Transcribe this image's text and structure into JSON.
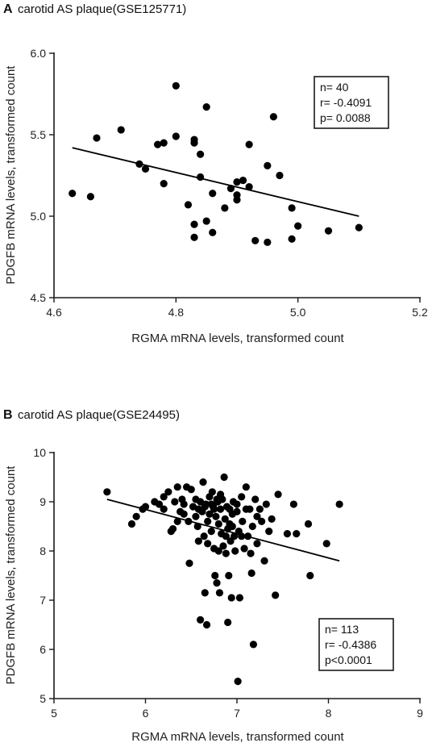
{
  "chart_data": [
    {
      "type": "scatter",
      "panel_letter": "A",
      "title": "carotid AS plaque(GSE125771)",
      "xlabel": "RGMA mRNA levels, transformed count",
      "ylabel": "PDGFB mRNA levels, transformed count",
      "xlim": [
        4.6,
        5.2
      ],
      "ylim": [
        4.5,
        6.0
      ],
      "xticks": [
        "4.6",
        "4.8",
        "5.0",
        "5.2"
      ],
      "yticks": [
        "4.5",
        "5.0",
        "5.5",
        "6.0"
      ],
      "xtick_values": [
        4.6,
        4.8,
        5.0,
        5.2
      ],
      "ytick_values": [
        4.5,
        5.0,
        5.5,
        6.0
      ],
      "grid": false,
      "stats": {
        "n": "n= 40",
        "r": "r= -0.4091",
        "p": "p= 0.0088"
      },
      "trendline": {
        "x": [
          4.63,
          5.1
        ],
        "y": [
          5.42,
          5.0
        ]
      },
      "points": [
        {
          "x": 4.63,
          "y": 5.14
        },
        {
          "x": 4.66,
          "y": 5.12
        },
        {
          "x": 4.67,
          "y": 5.48
        },
        {
          "x": 4.71,
          "y": 5.53
        },
        {
          "x": 4.74,
          "y": 5.32
        },
        {
          "x": 4.75,
          "y": 5.29
        },
        {
          "x": 4.77,
          "y": 5.44
        },
        {
          "x": 4.78,
          "y": 5.45
        },
        {
          "x": 4.78,
          "y": 5.2
        },
        {
          "x": 4.8,
          "y": 5.8
        },
        {
          "x": 4.8,
          "y": 5.49
        },
        {
          "x": 4.82,
          "y": 5.07
        },
        {
          "x": 4.83,
          "y": 5.47
        },
        {
          "x": 4.83,
          "y": 5.45
        },
        {
          "x": 4.83,
          "y": 4.95
        },
        {
          "x": 4.83,
          "y": 4.87
        },
        {
          "x": 4.84,
          "y": 5.38
        },
        {
          "x": 4.84,
          "y": 5.24
        },
        {
          "x": 4.85,
          "y": 5.67
        },
        {
          "x": 4.85,
          "y": 4.97
        },
        {
          "x": 4.86,
          "y": 5.14
        },
        {
          "x": 4.86,
          "y": 4.9
        },
        {
          "x": 4.89,
          "y": 5.17
        },
        {
          "x": 4.9,
          "y": 5.21
        },
        {
          "x": 4.9,
          "y": 5.13
        },
        {
          "x": 4.9,
          "y": 5.1
        },
        {
          "x": 4.91,
          "y": 5.22
        },
        {
          "x": 4.92,
          "y": 5.44
        },
        {
          "x": 4.92,
          "y": 5.18
        },
        {
          "x": 4.95,
          "y": 5.31
        },
        {
          "x": 4.95,
          "y": 4.84
        },
        {
          "x": 4.96,
          "y": 5.61
        },
        {
          "x": 4.97,
          "y": 5.25
        },
        {
          "x": 4.99,
          "y": 5.05
        },
        {
          "x": 4.99,
          "y": 4.86
        },
        {
          "x": 5.0,
          "y": 4.94
        },
        {
          "x": 5.05,
          "y": 4.91
        },
        {
          "x": 5.1,
          "y": 4.93
        },
        {
          "x": 4.93,
          "y": 4.85
        },
        {
          "x": 4.88,
          "y": 5.05
        }
      ]
    },
    {
      "type": "scatter",
      "panel_letter": "B",
      "title": "carotid AS plaque(GSE24495)",
      "xlabel": "RGMA mRNA levels, transformed count",
      "ylabel": "PDGFB mRNA levels, transformed count",
      "xlim": [
        5,
        9
      ],
      "ylim": [
        5,
        10
      ],
      "xticks": [
        "5",
        "6",
        "7",
        "8",
        "9"
      ],
      "yticks": [
        "5",
        "6",
        "7",
        "8",
        "9",
        "10"
      ],
      "xtick_values": [
        5,
        6,
        7,
        8,
        9
      ],
      "ytick_values": [
        5,
        6,
        7,
        8,
        9,
        10
      ],
      "grid": false,
      "stats": {
        "n": "n= 113",
        "r": "r= -0.4386",
        "p": "p<0.0001"
      },
      "trendline": {
        "x": [
          5.58,
          8.12
        ],
        "y": [
          9.05,
          7.8
        ]
      },
      "points": [
        {
          "x": 5.58,
          "y": 9.2
        },
        {
          "x": 5.85,
          "y": 8.55
        },
        {
          "x": 5.9,
          "y": 8.7
        },
        {
          "x": 5.97,
          "y": 8.85
        },
        {
          "x": 6.0,
          "y": 8.9
        },
        {
          "x": 6.1,
          "y": 9.0
        },
        {
          "x": 6.15,
          "y": 8.95
        },
        {
          "x": 6.2,
          "y": 9.1
        },
        {
          "x": 6.25,
          "y": 9.2
        },
        {
          "x": 6.28,
          "y": 8.4
        },
        {
          "x": 6.3,
          "y": 8.45
        },
        {
          "x": 6.32,
          "y": 9.0
        },
        {
          "x": 6.35,
          "y": 9.3
        },
        {
          "x": 6.38,
          "y": 8.8
        },
        {
          "x": 6.4,
          "y": 9.05
        },
        {
          "x": 6.42,
          "y": 8.95
        },
        {
          "x": 6.45,
          "y": 9.3
        },
        {
          "x": 6.47,
          "y": 8.6
        },
        {
          "x": 6.48,
          "y": 7.75
        },
        {
          "x": 6.5,
          "y": 9.25
        },
        {
          "x": 6.52,
          "y": 8.9
        },
        {
          "x": 6.55,
          "y": 8.7
        },
        {
          "x": 6.57,
          "y": 8.5
        },
        {
          "x": 6.58,
          "y": 8.2
        },
        {
          "x": 6.6,
          "y": 9.0
        },
        {
          "x": 6.6,
          "y": 6.6
        },
        {
          "x": 6.62,
          "y": 8.8
        },
        {
          "x": 6.63,
          "y": 9.4
        },
        {
          "x": 6.64,
          "y": 8.3
        },
        {
          "x": 6.65,
          "y": 7.15
        },
        {
          "x": 6.66,
          "y": 8.95
        },
        {
          "x": 6.67,
          "y": 6.5
        },
        {
          "x": 6.68,
          "y": 8.6
        },
        {
          "x": 6.7,
          "y": 9.1
        },
        {
          "x": 6.7,
          "y": 8.75
        },
        {
          "x": 6.72,
          "y": 8.4
        },
        {
          "x": 6.73,
          "y": 9.2
        },
        {
          "x": 6.74,
          "y": 8.9
        },
        {
          "x": 6.75,
          "y": 8.05
        },
        {
          "x": 6.76,
          "y": 7.5
        },
        {
          "x": 6.77,
          "y": 8.7
        },
        {
          "x": 6.78,
          "y": 7.35
        },
        {
          "x": 6.79,
          "y": 9.0
        },
        {
          "x": 6.8,
          "y": 8.55
        },
        {
          "x": 6.8,
          "y": 8.0
        },
        {
          "x": 6.81,
          "y": 7.15
        },
        {
          "x": 6.82,
          "y": 8.85
        },
        {
          "x": 6.83,
          "y": 8.35
        },
        {
          "x": 6.84,
          "y": 9.05
        },
        {
          "x": 6.85,
          "y": 8.1
        },
        {
          "x": 6.86,
          "y": 9.5
        },
        {
          "x": 6.87,
          "y": 8.65
        },
        {
          "x": 6.88,
          "y": 7.95
        },
        {
          "x": 6.89,
          "y": 8.9
        },
        {
          "x": 6.9,
          "y": 8.45
        },
        {
          "x": 6.9,
          "y": 6.55
        },
        {
          "x": 6.91,
          "y": 7.5
        },
        {
          "x": 6.92,
          "y": 8.85
        },
        {
          "x": 6.93,
          "y": 8.2
        },
        {
          "x": 6.94,
          "y": 7.05
        },
        {
          "x": 6.95,
          "y": 8.5
        },
        {
          "x": 6.96,
          "y": 9.0
        },
        {
          "x": 6.97,
          "y": 8.3
        },
        {
          "x": 6.98,
          "y": 8.0
        },
        {
          "x": 7.0,
          "y": 8.8
        },
        {
          "x": 7.01,
          "y": 5.35
        },
        {
          "x": 7.02,
          "y": 8.4
        },
        {
          "x": 7.03,
          "y": 7.05
        },
        {
          "x": 7.05,
          "y": 9.1
        },
        {
          "x": 7.06,
          "y": 8.6
        },
        {
          "x": 7.08,
          "y": 8.05
        },
        {
          "x": 7.1,
          "y": 9.3
        },
        {
          "x": 7.12,
          "y": 8.3
        },
        {
          "x": 7.14,
          "y": 8.85
        },
        {
          "x": 7.15,
          "y": 7.95
        },
        {
          "x": 7.16,
          "y": 7.55
        },
        {
          "x": 7.17,
          "y": 8.5
        },
        {
          "x": 7.18,
          "y": 6.1
        },
        {
          "x": 7.2,
          "y": 9.05
        },
        {
          "x": 7.22,
          "y": 8.15
        },
        {
          "x": 7.25,
          "y": 8.85
        },
        {
          "x": 7.27,
          "y": 8.6
        },
        {
          "x": 7.3,
          "y": 7.8
        },
        {
          "x": 7.32,
          "y": 8.95
        },
        {
          "x": 7.35,
          "y": 8.4
        },
        {
          "x": 7.38,
          "y": 8.65
        },
        {
          "x": 7.42,
          "y": 7.1
        },
        {
          "x": 7.45,
          "y": 9.15
        },
        {
          "x": 7.55,
          "y": 8.35
        },
        {
          "x": 7.62,
          "y": 8.95
        },
        {
          "x": 7.65,
          "y": 8.35
        },
        {
          "x": 7.78,
          "y": 8.55
        },
        {
          "x": 7.8,
          "y": 7.5
        },
        {
          "x": 7.98,
          "y": 8.15
        },
        {
          "x": 8.12,
          "y": 8.95
        },
        {
          "x": 6.2,
          "y": 8.85
        },
        {
          "x": 6.35,
          "y": 8.6
        },
        {
          "x": 6.55,
          "y": 9.05
        },
        {
          "x": 6.68,
          "y": 8.15
        },
        {
          "x": 6.75,
          "y": 8.85
        },
        {
          "x": 6.82,
          "y": 9.15
        },
        {
          "x": 6.95,
          "y": 8.75
        },
        {
          "x": 7.05,
          "y": 8.3
        },
        {
          "x": 7.1,
          "y": 8.85
        },
        {
          "x": 6.65,
          "y": 8.9
        },
        {
          "x": 6.88,
          "y": 8.3
        },
        {
          "x": 6.42,
          "y": 8.75
        },
        {
          "x": 7.0,
          "y": 8.95
        },
        {
          "x": 6.78,
          "y": 9.05
        },
        {
          "x": 6.58,
          "y": 8.85
        },
        {
          "x": 7.22,
          "y": 8.7
        },
        {
          "x": 6.92,
          "y": 8.55
        },
        {
          "x": 6.72,
          "y": 8.95
        }
      ]
    }
  ]
}
